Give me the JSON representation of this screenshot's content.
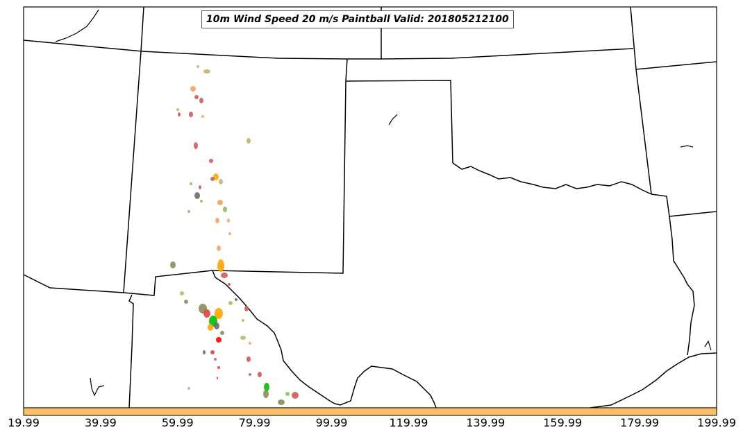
{
  "title": "10m Wind Speed 20 m/s Paintball Valid: 201805212100",
  "colorbar": {
    "color": "#fdc068",
    "ticks": [
      "19.99",
      "39.99",
      "59.99",
      "79.99",
      "99.99",
      "119.99",
      "139.99",
      "159.99",
      "179.99",
      "199.99"
    ]
  },
  "paintball_colors": [
    "#6b6b6b",
    "#f4a460",
    "#bdb76b",
    "#ff7f50",
    "#cd5c5c",
    "#ffa500",
    "#8fbc5f",
    "#e0443c",
    "#8b8b5a",
    "#00c000",
    "#ff0000",
    "#a0522d"
  ]
}
